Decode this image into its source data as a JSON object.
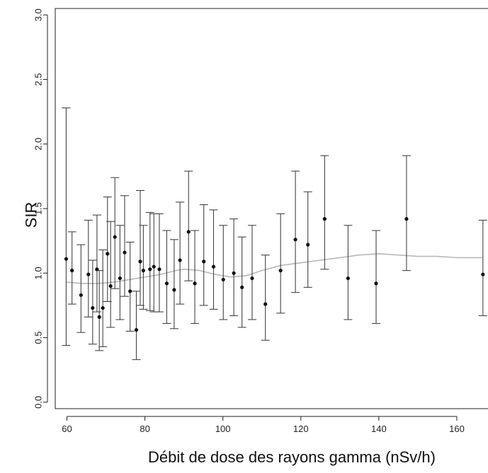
{
  "chart_data": {
    "type": "scatter",
    "title": "",
    "xlabel": "Débit de dose des rayons gamma (nSv/h)",
    "ylabel": "SIR",
    "xlim": [
      57,
      168
    ],
    "ylim": [
      -0.05,
      3.05
    ],
    "x_ticks": [
      60,
      80,
      100,
      120,
      140,
      160
    ],
    "x_tick_labels": [
      "60",
      "80",
      "100",
      "120",
      "140",
      "160"
    ],
    "y_ticks": [
      0.0,
      0.5,
      1.0,
      1.5,
      2.0,
      2.5,
      3.0
    ],
    "y_tick_labels": [
      "0.0",
      "0.5",
      "1.0",
      "1.5",
      "2.0",
      "2.5",
      "3.0"
    ],
    "grid": false,
    "legend": "none",
    "colors": {
      "points": "#111111",
      "error_bars": "#444444",
      "trend": "#b8b8b8",
      "axis": "#222222"
    },
    "series": [
      {
        "type": "points_with_error_bars",
        "points": [
          {
            "x": 59.8,
            "y": 1.11,
            "lo": 0.44,
            "hi": 2.28
          },
          {
            "x": 61.3,
            "y": 1.02,
            "lo": 0.76,
            "hi": 1.32
          },
          {
            "x": 63.6,
            "y": 0.83,
            "lo": 0.54,
            "hi": 1.22
          },
          {
            "x": 65.5,
            "y": 0.99,
            "lo": 0.66,
            "hi": 1.41
          },
          {
            "x": 66.6,
            "y": 0.73,
            "lo": 0.45,
            "hi": 1.1
          },
          {
            "x": 67.7,
            "y": 1.03,
            "lo": 0.7,
            "hi": 1.45
          },
          {
            "x": 68.3,
            "y": 0.66,
            "lo": 0.4,
            "hi": 1.02
          },
          {
            "x": 69.2,
            "y": 0.73,
            "lo": 0.43,
            "hi": 1.18
          },
          {
            "x": 70.4,
            "y": 1.15,
            "lo": 0.78,
            "hi": 1.59
          },
          {
            "x": 71.2,
            "y": 0.9,
            "lo": 0.58,
            "hi": 1.4
          },
          {
            "x": 72.3,
            "y": 1.28,
            "lo": 0.88,
            "hi": 1.74
          },
          {
            "x": 73.6,
            "y": 0.96,
            "lo": 0.64,
            "hi": 1.37
          },
          {
            "x": 74.8,
            "y": 1.16,
            "lo": 0.82,
            "hi": 1.6
          },
          {
            "x": 76.2,
            "y": 0.86,
            "lo": 0.55,
            "hi": 1.24
          },
          {
            "x": 77.8,
            "y": 0.56,
            "lo": 0.33,
            "hi": 0.86
          },
          {
            "x": 78.8,
            "y": 1.09,
            "lo": 0.75,
            "hi": 1.64
          },
          {
            "x": 79.6,
            "y": 1.02,
            "lo": 0.72,
            "hi": 1.37
          },
          {
            "x": 81.3,
            "y": 1.03,
            "lo": 0.71,
            "hi": 1.47
          },
          {
            "x": 82.3,
            "y": 1.05,
            "lo": 0.7,
            "hi": 1.46
          },
          {
            "x": 83.7,
            "y": 1.03,
            "lo": 0.7,
            "hi": 1.46
          },
          {
            "x": 85.6,
            "y": 0.92,
            "lo": 0.61,
            "hi": 1.33
          },
          {
            "x": 87.5,
            "y": 0.87,
            "lo": 0.57,
            "hi": 1.26
          },
          {
            "x": 89.0,
            "y": 1.1,
            "lo": 0.76,
            "hi": 1.55
          },
          {
            "x": 91.2,
            "y": 1.32,
            "lo": 0.94,
            "hi": 1.79
          },
          {
            "x": 92.8,
            "y": 0.92,
            "lo": 0.61,
            "hi": 1.33
          },
          {
            "x": 95.1,
            "y": 1.09,
            "lo": 0.75,
            "hi": 1.53
          },
          {
            "x": 97.6,
            "y": 1.05,
            "lo": 0.72,
            "hi": 1.49
          },
          {
            "x": 100.1,
            "y": 0.95,
            "lo": 0.64,
            "hi": 1.37
          },
          {
            "x": 102.8,
            "y": 1.0,
            "lo": 0.67,
            "hi": 1.42
          },
          {
            "x": 104.9,
            "y": 0.89,
            "lo": 0.58,
            "hi": 1.28
          },
          {
            "x": 107.5,
            "y": 0.96,
            "lo": 0.64,
            "hi": 1.37
          },
          {
            "x": 110.9,
            "y": 0.76,
            "lo": 0.48,
            "hi": 1.14
          },
          {
            "x": 114.8,
            "y": 1.02,
            "lo": 0.69,
            "hi": 1.46
          },
          {
            "x": 118.6,
            "y": 1.26,
            "lo": 0.85,
            "hi": 1.79
          },
          {
            "x": 121.8,
            "y": 1.22,
            "lo": 0.89,
            "hi": 1.63
          },
          {
            "x": 126.1,
            "y": 1.42,
            "lo": 1.03,
            "hi": 1.91
          },
          {
            "x": 132.1,
            "y": 0.96,
            "lo": 0.64,
            "hi": 1.37
          },
          {
            "x": 139.3,
            "y": 0.92,
            "lo": 0.61,
            "hi": 1.33
          },
          {
            "x": 147.1,
            "y": 1.42,
            "lo": 1.02,
            "hi": 1.91
          },
          {
            "x": 166.7,
            "y": 0.99,
            "lo": 0.67,
            "hi": 1.41
          }
        ]
      },
      {
        "type": "line",
        "x": [
          59.8,
          64,
          68,
          72,
          76,
          80,
          84,
          88,
          90,
          94,
          98,
          102,
          106,
          110,
          115,
          120,
          125,
          130,
          135,
          140,
          145,
          150,
          155,
          160,
          166.7
        ],
        "y": [
          0.93,
          0.92,
          0.92,
          0.93,
          0.95,
          0.97,
          0.99,
          1.02,
          1.03,
          1.02,
          0.99,
          0.97,
          0.98,
          1.02,
          1.06,
          1.08,
          1.1,
          1.12,
          1.14,
          1.15,
          1.14,
          1.13,
          1.13,
          1.12,
          1.12
        ]
      }
    ]
  }
}
